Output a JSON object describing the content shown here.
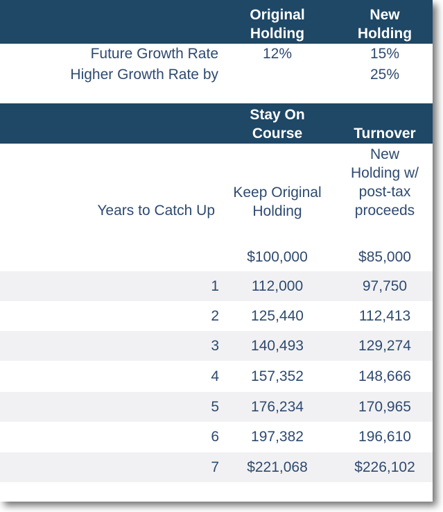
{
  "header_top": {
    "original": "Original Holding",
    "new": "New Holding"
  },
  "params": {
    "growth_label": "Future Growth Rate",
    "growth_original": "12%",
    "growth_new": "15%",
    "higher_label": "Higher Growth Rate by",
    "higher_value": "25%"
  },
  "header_mid": {
    "stay": "Stay On Course",
    "turnover": "Turnover"
  },
  "subheader": {
    "years": "Years to Catch Up",
    "keep_lines": [
      "Keep Original",
      "Holding"
    ],
    "new_lines": [
      "New",
      "Holding w/",
      "post-tax",
      "proceeds"
    ]
  },
  "start": {
    "keep": "$100,000",
    "new": "$85,000"
  },
  "rows": [
    {
      "year": "1",
      "keep": "112,000",
      "new": "97,750"
    },
    {
      "year": "2",
      "keep": "125,440",
      "new": "112,413"
    },
    {
      "year": "3",
      "keep": "140,493",
      "new": "129,274"
    },
    {
      "year": "4",
      "keep": "157,352",
      "new": "148,666"
    },
    {
      "year": "5",
      "keep": "176,234",
      "new": "170,965"
    },
    {
      "year": "6",
      "keep": "197,382",
      "new": "196,610"
    },
    {
      "year": "7",
      "keep": "$221,068",
      "new": "$226,102"
    }
  ],
  "colors": {
    "header_bg": "#1f4766",
    "text": "#2e4a70",
    "row_shade": "#f1f1f3"
  }
}
